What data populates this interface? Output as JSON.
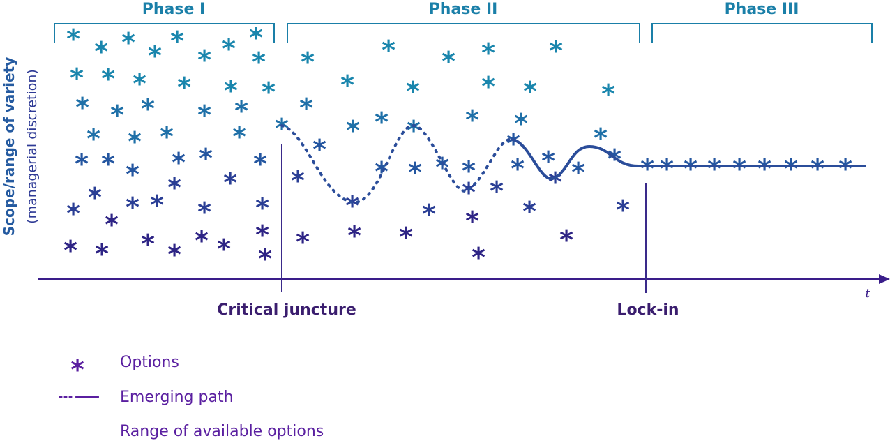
{
  "diagram": {
    "phases": [
      {
        "label": "Phase I"
      },
      {
        "label": "Phase II"
      },
      {
        "label": "Phase III"
      }
    ],
    "y_axis": {
      "title": "Scope/range of variety",
      "subtitle": "(managerial discretion)"
    },
    "x_axis": {
      "label": "t"
    },
    "markers": {
      "critical_juncture": "Critical juncture",
      "lock_in": "Lock-in"
    },
    "legend": {
      "options": "Options",
      "emerging_path": "Emerging path",
      "range": "Range of available options"
    },
    "option_symbol": "*",
    "colors": {
      "teal": "#1a7fa8",
      "navy": "#2a2f8a",
      "purple": "#5a1fa0",
      "path": "#2b4d9a"
    }
  }
}
